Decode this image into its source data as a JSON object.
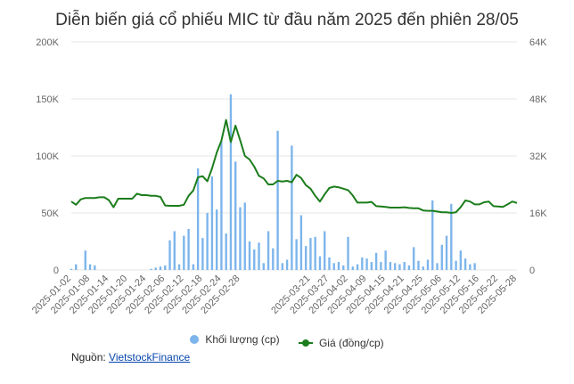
{
  "chart_data": {
    "type": "bar+line",
    "title": "Diễn biến giá cổ phiếu MIC từ đầu năm 2025 đến phiên 28/05",
    "x": [
      "2025-01-02",
      "2025-01-03",
      "2025-01-06",
      "2025-01-07",
      "2025-01-08",
      "2025-01-09",
      "2025-01-10",
      "2025-01-13",
      "2025-01-14",
      "2025-01-15",
      "2025-01-16",
      "2025-01-17",
      "2025-01-20",
      "2025-01-21",
      "2025-01-22",
      "2025-01-23",
      "2025-01-24",
      "2025-02-03",
      "2025-02-04",
      "2025-02-05",
      "2025-02-06",
      "2025-02-07",
      "2025-02-10",
      "2025-02-11",
      "2025-02-12",
      "2025-02-13",
      "2025-02-14",
      "2025-02-17",
      "2025-02-18",
      "2025-02-19",
      "2025-02-20",
      "2025-02-21",
      "2025-02-24",
      "2025-02-25",
      "2025-02-26",
      "2025-02-27",
      "2025-02-28",
      "2025-03-03",
      "2025-03-04",
      "2025-03-05",
      "2025-03-06",
      "2025-03-07",
      "2025-03-10",
      "2025-03-11",
      "2025-03-12",
      "2025-03-13",
      "2025-03-14",
      "2025-03-17",
      "2025-03-18",
      "2025-03-19",
      "2025-03-20",
      "2025-03-21",
      "2025-03-24",
      "2025-03-25",
      "2025-03-26",
      "2025-03-27",
      "2025-03-28",
      "2025-03-31",
      "2025-04-01",
      "2025-04-02",
      "2025-04-03",
      "2025-04-04",
      "2025-04-08",
      "2025-04-09",
      "2025-04-10",
      "2025-04-11",
      "2025-04-14",
      "2025-04-15",
      "2025-04-16",
      "2025-04-17",
      "2025-04-18",
      "2025-04-21",
      "2025-04-22",
      "2025-04-23",
      "2025-04-24",
      "2025-04-25",
      "2025-04-28",
      "2025-04-29",
      "2025-05-05",
      "2025-05-06",
      "2025-05-07",
      "2025-05-08",
      "2025-05-09",
      "2025-05-12",
      "2025-05-13",
      "2025-05-14",
      "2025-05-15",
      "2025-05-16",
      "2025-05-19",
      "2025-05-20",
      "2025-05-21",
      "2025-05-22",
      "2025-05-23",
      "2025-05-26",
      "2025-05-27",
      "2025-05-28"
    ],
    "x_ticks": [
      "2025-01-02",
      "2025-01-08",
      "2025-01-14",
      "2025-01-20",
      "2025-01-24",
      "2025-02-06",
      "2025-02-12",
      "2025-02-18",
      "2025-02-24",
      "2025-02-28",
      "2025-03-21",
      "2025-03-27",
      "2025-04-02",
      "2025-04-09",
      "2025-04-15",
      "2025-04-21",
      "2025-04-25",
      "2025-05-06",
      "2025-05-12",
      "2025-05-16",
      "2025-05-22",
      "2025-05-28"
    ],
    "y_left": {
      "ticks": [
        "0",
        "50K",
        "100K",
        "150K",
        "200K"
      ],
      "range": [
        0,
        200000
      ]
    },
    "y_right": {
      "ticks": [
        "0",
        "16K",
        "32K",
        "48K",
        "64K"
      ],
      "range": [
        0,
        64000
      ]
    },
    "series": [
      {
        "name": "Khối lượng (cp)",
        "type": "bar",
        "axis": "left",
        "color": "#7cb5ec",
        "values": [
          1000,
          5000,
          0,
          17000,
          5000,
          4000,
          0,
          0,
          0,
          0,
          0,
          0,
          0,
          0,
          0,
          0,
          0,
          1000,
          2000,
          3000,
          4000,
          26000,
          34000,
          5000,
          30000,
          36000,
          5000,
          89000,
          28000,
          50000,
          82000,
          53000,
          113000,
          32000,
          154000,
          95000,
          55000,
          59000,
          25000,
          18000,
          24000,
          6000,
          34000,
          19000,
          122000,
          6000,
          9000,
          109000,
          27000,
          48000,
          21000,
          28000,
          29000,
          12000,
          34000,
          11000,
          6000,
          7000,
          4000,
          29000,
          3000,
          5000,
          11000,
          10000,
          7000,
          15000,
          7000,
          17000,
          7000,
          6000,
          5000,
          7000,
          4000,
          20000,
          8000,
          3000,
          9000,
          61000,
          6000,
          22000,
          30000,
          58000,
          8000,
          17000,
          10000,
          5000,
          6000,
          0,
          0,
          0,
          0,
          0,
          0,
          0,
          0,
          0
        ]
      },
      {
        "name": "Giá (đồng/cp)",
        "type": "line",
        "axis": "right",
        "color": "#1b7d1b",
        "values": [
          19200,
          18300,
          19800,
          20200,
          20200,
          20200,
          20400,
          20400,
          19600,
          17600,
          20000,
          20000,
          20000,
          20000,
          21400,
          21000,
          21000,
          20800,
          20800,
          20500,
          18100,
          18000,
          18000,
          18000,
          18300,
          20800,
          22300,
          26000,
          26300,
          24900,
          28500,
          32900,
          36300,
          42100,
          35900,
          40500,
          36400,
          32000,
          31000,
          29000,
          26400,
          25700,
          24000,
          24000,
          25000,
          24800,
          25000,
          24600,
          26700,
          25800,
          23800,
          22800,
          20800,
          19200,
          21200,
          23000,
          23400,
          23200,
          22800,
          22400,
          20900,
          18900,
          18900,
          18900,
          19100,
          17900,
          17800,
          17700,
          17500,
          17500,
          17500,
          17600,
          17400,
          17300,
          17300,
          16700,
          16600,
          16600,
          16400,
          16200,
          16200,
          16000,
          16200,
          17600,
          19500,
          19200,
          18400,
          18400,
          19000,
          19200,
          17900,
          17800,
          17700,
          18400,
          19200,
          18800
        ]
      }
    ],
    "legend": [
      "Khối lượng (cp)",
      "Giá (đồng/cp)"
    ],
    "legend_position": "bottom",
    "grid": true
  },
  "source": {
    "label": "Nguồn:",
    "link_text": "VietstockFinance"
  }
}
